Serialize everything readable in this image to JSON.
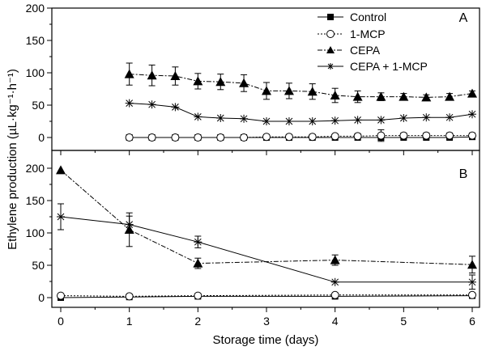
{
  "chart_data": {
    "type": "line",
    "ylabel": "Ethylene production (µL·kg⁻¹·h⁻¹)",
    "xlabel": "Storage time (days)",
    "xlim": [
      0,
      6
    ],
    "x_ticks": [
      "0",
      "1",
      "2",
      "3",
      "4",
      "5",
      "6"
    ],
    "legend": {
      "placement": "top-right",
      "entries": [
        {
          "name": "Control",
          "marker": "square-filled",
          "line": "solid"
        },
        {
          "name": "1-MCP",
          "marker": "circle-open",
          "line": "dotted"
        },
        {
          "name": "CEPA",
          "marker": "triangle-filled",
          "line": "dashdot"
        },
        {
          "name": "CEPA + 1-MCP",
          "marker": "asterisk",
          "line": "solid"
        }
      ]
    },
    "panels": [
      {
        "label": "A",
        "ylim": [
          0,
          200
        ],
        "y_ticks": [
          "0",
          "50",
          "100",
          "150",
          "200"
        ],
        "series": [
          {
            "name": "Control",
            "x": [
              1,
              1.33,
              1.67,
              2,
              2.33,
              2.67,
              3,
              3.33,
              3.67,
              4,
              4.33,
              4.67,
              5,
              5.33,
              5.67,
              6
            ],
            "values": [
              0,
              0,
              0,
              0,
              0,
              0,
              0,
              0,
              0,
              0,
              0,
              0,
              0,
              0,
              0,
              1
            ],
            "errors": []
          },
          {
            "name": "1-MCP",
            "x": [
              1,
              1.33,
              1.67,
              2,
              2.33,
              2.67,
              3,
              3.33,
              3.67,
              4,
              4.33,
              4.67,
              5,
              5.33,
              5.67,
              6
            ],
            "values": [
              0,
              0,
              0,
              0,
              0,
              0,
              1,
              1,
              1,
              2,
              2,
              3,
              3,
              3,
              3,
              3
            ],
            "errors": [
              0,
              2,
              2,
              2,
              3,
              3,
              3,
              3,
              3,
              3,
              4,
              9,
              4,
              4,
              4,
              4
            ]
          },
          {
            "name": "CEPA",
            "x": [
              1,
              1.33,
              1.67,
              2,
              2.33,
              2.67,
              3,
              3.33,
              3.67,
              4,
              4.33,
              4.67,
              5,
              5.33,
              5.67,
              6
            ],
            "values": [
              98,
              96,
              95,
              87,
              86,
              84,
              72,
              72,
              71,
              65,
              63,
              63,
              63,
              62,
              63,
              68
            ],
            "errors": [
              17,
              16,
              14,
              12,
              12,
              13,
              13,
              12,
              12,
              11,
              9,
              6,
              5,
              4,
              5,
              4
            ]
          },
          {
            "name": "CEPA + 1-MCP",
            "x": [
              1,
              1.33,
              1.67,
              2,
              2.33,
              2.67,
              3,
              3.33,
              3.67,
              4,
              4.33,
              4.67,
              5,
              5.33,
              5.67,
              6
            ],
            "values": [
              53,
              51,
              47,
              32,
              30,
              29,
              25,
              25,
              25,
              26,
              27,
              27,
              30,
              31,
              31,
              36
            ],
            "errors": []
          }
        ]
      },
      {
        "label": "B",
        "ylim": [
          0,
          200
        ],
        "y_ticks": [
          "0",
          "50",
          "100",
          "150",
          "200"
        ],
        "series": [
          {
            "name": "Control",
            "x": [
              0,
              1,
              2,
              4,
              6
            ],
            "values": [
              0,
              1,
              2,
              2,
              3
            ],
            "errors": []
          },
          {
            "name": "1-MCP",
            "x": [
              0,
              1,
              2,
              4,
              6
            ],
            "values": [
              3,
              2,
              3,
              4,
              4
            ],
            "errors": []
          },
          {
            "name": "CEPA",
            "x": [
              0,
              1,
              2,
              4,
              6
            ],
            "values": [
              197,
              105,
              53,
              58,
              51
            ],
            "errors": [
              0,
              26,
              8,
              8,
              13
            ]
          },
          {
            "name": "CEPA + 1-MCP",
            "x": [
              0,
              1,
              2,
              4,
              6
            ],
            "values": [
              125,
              113,
              86,
              24,
              24
            ],
            "errors": [
              20,
              13,
              9,
              0,
              11
            ]
          }
        ]
      }
    ]
  }
}
